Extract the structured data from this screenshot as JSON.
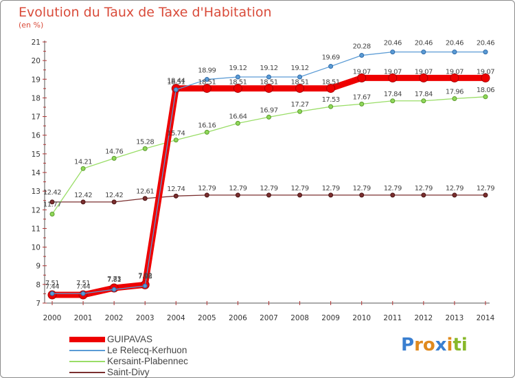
{
  "chart_data": {
    "type": "line",
    "title": "Evolution du Taux de Taxe d'Habitation",
    "ylabel": "(en %)",
    "x": [
      "2000",
      "2001",
      "2002",
      "2003",
      "2004",
      "2005",
      "2006",
      "2007",
      "2008",
      "2009",
      "2010",
      "2011",
      "2012",
      "2013",
      "2014"
    ],
    "ylim": [
      7,
      21
    ],
    "yticks": [
      7,
      8,
      9,
      10,
      11,
      12,
      13,
      14,
      15,
      16,
      17,
      18,
      19,
      20,
      21
    ],
    "series": [
      {
        "name": "GUIPAVAS",
        "color": "#ee0000",
        "values": [
          7.44,
          7.44,
          7.81,
          7.98,
          18.51,
          18.51,
          18.51,
          18.51,
          18.51,
          18.51,
          19.07,
          19.07,
          19.07,
          19.07,
          19.07
        ],
        "labels": [
          "7.44",
          "7.44",
          "7.81",
          "7.98",
          "18.51",
          "18.51",
          "18.51",
          "18.51",
          "18.51",
          "18.51",
          "19.07",
          "19.07",
          "19.07",
          "19.07",
          "19.07"
        ]
      },
      {
        "name": "Le Relecq-Kerhuon",
        "color": "#5a9bd5",
        "values": [
          7.51,
          7.51,
          7.73,
          7.92,
          18.44,
          18.99,
          19.12,
          19.12,
          19.12,
          19.69,
          20.28,
          20.46,
          20.46,
          20.46,
          20.46
        ],
        "labels": [
          "7.51",
          "7.51",
          "7.73",
          "7.92",
          "18.44",
          "18.99",
          "19.12",
          "19.12",
          "19.12",
          "19.69",
          "20.28",
          "20.46",
          "20.46",
          "20.46",
          "20.46"
        ]
      },
      {
        "name": "Kersaint-Plabennec",
        "color": "#99dd66",
        "values": [
          11.77,
          14.21,
          14.76,
          15.28,
          15.74,
          16.16,
          16.64,
          16.97,
          17.27,
          17.53,
          17.67,
          17.84,
          17.84,
          17.96,
          18.06
        ],
        "labels": [
          "11.77",
          "14.21",
          "14.76",
          "15.28",
          "15.74",
          "16.16",
          "16.64",
          "16.97",
          "17.27",
          "17.53",
          "17.67",
          "17.84",
          "17.84",
          "17.96",
          "18.06"
        ]
      },
      {
        "name": "Saint-Divy",
        "color": "#7a2e2e",
        "values": [
          12.42,
          12.42,
          12.42,
          12.61,
          12.74,
          12.79,
          12.79,
          12.79,
          12.79,
          12.79,
          12.79,
          12.79,
          12.79,
          12.79,
          12.79
        ],
        "labels": [
          "12.42",
          "12.42",
          "12.42",
          "12.61",
          "12.74",
          "12.79",
          "12.79",
          "12.79",
          "12.79",
          "12.79",
          "12.79",
          "12.79",
          "12.79",
          "12.79",
          "12.79"
        ]
      }
    ],
    "grid": false,
    "legend": "bottom-left"
  },
  "logo": {
    "letters": [
      "P",
      "r",
      "o",
      "x",
      "i",
      "t",
      "i"
    ],
    "colors": [
      "#3a7fd0",
      "#e08a1e",
      "#e08a1e",
      "#3a7fd0",
      "#e08a1e",
      "#88b82a",
      "#88b82a"
    ]
  }
}
